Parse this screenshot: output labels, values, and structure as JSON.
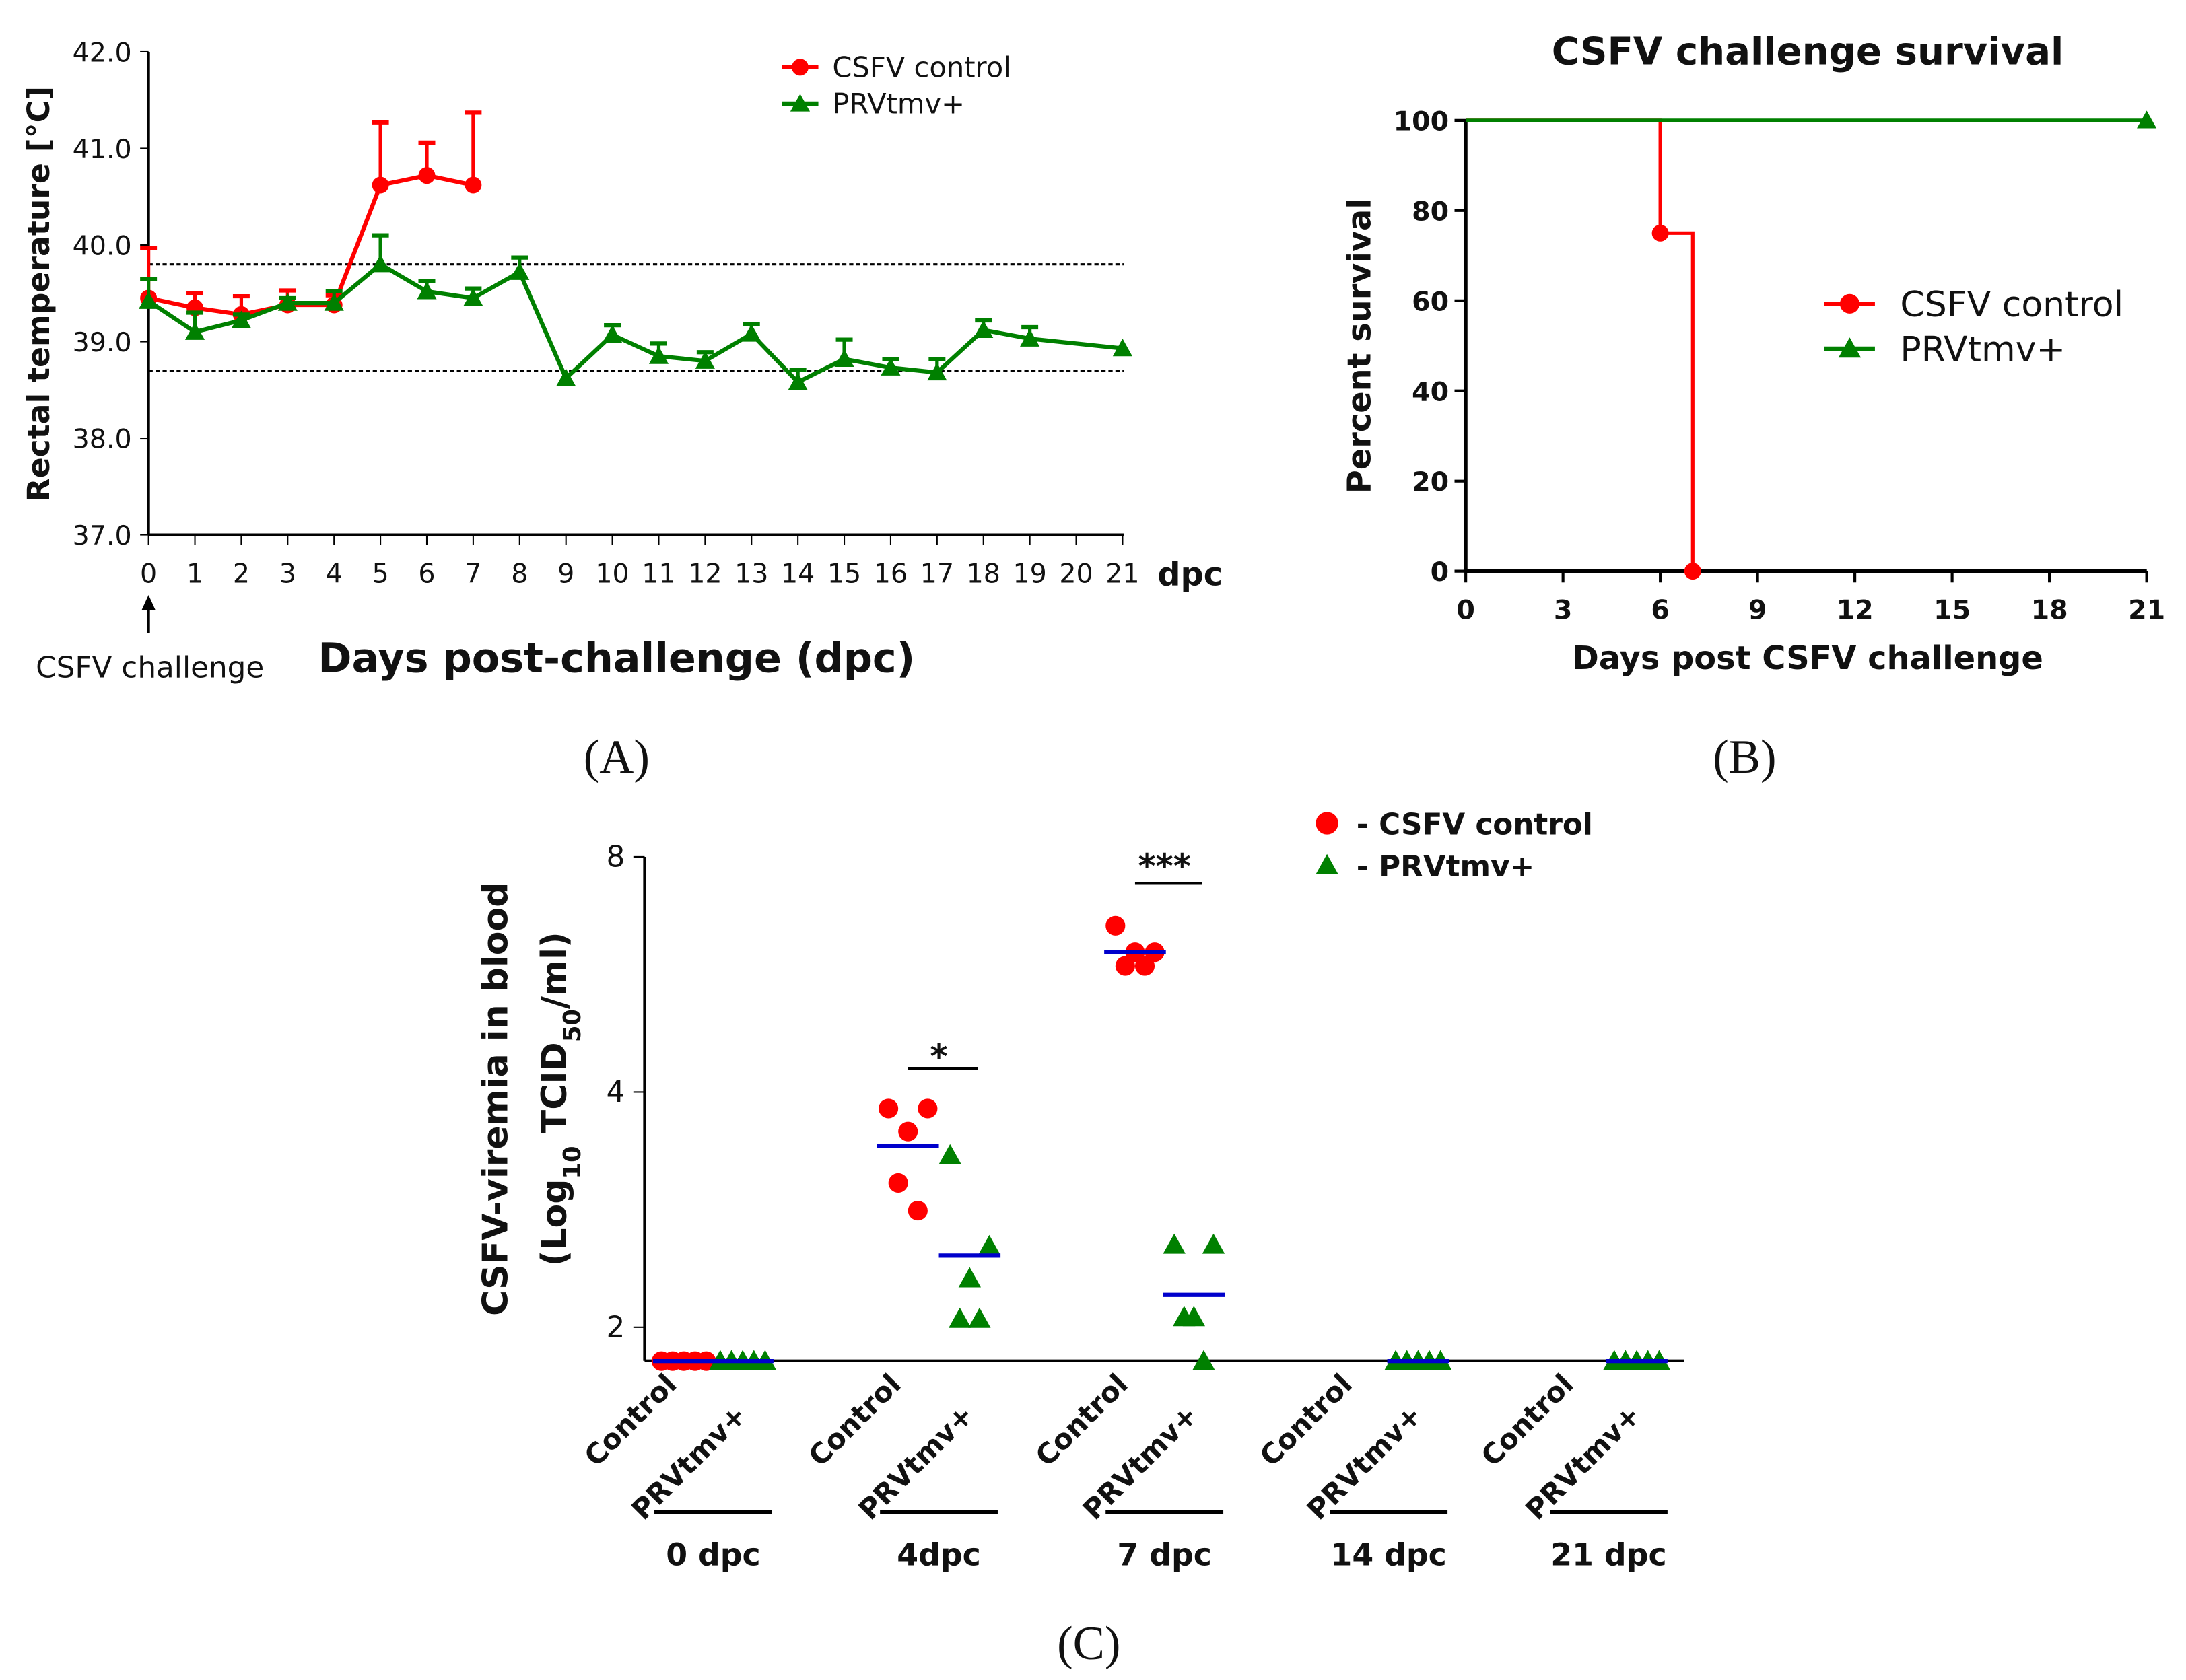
{
  "chart_data": [
    {
      "panel": "(A)",
      "type": "line",
      "title": "",
      "xlabel": "Days post-challenge (dpc)",
      "xunit": "dpc",
      "ylabel": "Rectal temperature [°C]",
      "ylim": [
        37.0,
        42.0
      ],
      "yticks": [
        "37.0",
        "38.0",
        "39.0",
        "40.0",
        "41.0",
        "42.0"
      ],
      "xticks": [
        "0",
        "1",
        "2",
        "3",
        "4",
        "5",
        "6",
        "7",
        "8",
        "9",
        "10",
        "11",
        "12",
        "13",
        "14",
        "15",
        "16",
        "17",
        "18",
        "19",
        "20",
        "21"
      ],
      "reference_lines": [
        39.8,
        38.7
      ],
      "annotation": "CSFV challenge",
      "legend_position": "top-right",
      "series": [
        {
          "name": "CSFV control",
          "color": "#ff0000",
          "marker": "circle",
          "x": [
            0,
            1,
            2,
            3,
            4,
            5,
            6,
            7
          ],
          "y": [
            39.45,
            39.35,
            39.28,
            39.38,
            39.38,
            40.62,
            40.72,
            40.62
          ],
          "err_upper": [
            39.97,
            39.5,
            39.47,
            39.53,
            39.48,
            41.27,
            41.06,
            41.37
          ]
        },
        {
          "name": "PRVtmv+",
          "color": "#008000",
          "marker": "triangle",
          "x": [
            0,
            1,
            2,
            3,
            4,
            5,
            6,
            7,
            8,
            9,
            10,
            11,
            12,
            13,
            14,
            15,
            16,
            17,
            18,
            19,
            21
          ],
          "y": [
            39.42,
            39.1,
            39.22,
            39.4,
            39.4,
            39.8,
            39.52,
            39.45,
            39.72,
            38.62,
            39.07,
            38.85,
            38.8,
            39.08,
            38.58,
            38.82,
            38.73,
            38.68,
            39.12,
            39.03,
            38.93
          ],
          "err_upper": [
            39.65,
            39.3,
            39.28,
            39.45,
            39.52,
            40.1,
            39.63,
            39.55,
            39.87,
            38.62,
            39.17,
            38.98,
            38.89,
            39.18,
            38.71,
            39.02,
            38.82,
            38.82,
            39.22,
            39.15,
            38.93
          ]
        }
      ]
    },
    {
      "panel": "(B)",
      "type": "line",
      "title": "CSFV challenge survival",
      "xlabel": "Days post CSFV challenge",
      "ylabel": "Percent survival",
      "xlim": [
        0,
        21
      ],
      "ylim": [
        0,
        100
      ],
      "xticks": [
        "0",
        "3",
        "6",
        "9",
        "12",
        "15",
        "18",
        "21"
      ],
      "yticks": [
        "0",
        "20",
        "40",
        "60",
        "80",
        "100"
      ],
      "legend_position": "right",
      "series": [
        {
          "name": "CSFV control",
          "color": "#ff0000",
          "marker": "circle",
          "step": true,
          "x": [
            0,
            6,
            7
          ],
          "y": [
            100,
            75,
            0
          ],
          "marked": [
            [
              6,
              75
            ],
            [
              7,
              0
            ]
          ]
        },
        {
          "name": "PRVtmv+",
          "color": "#008000",
          "marker": "triangle",
          "step": true,
          "x": [
            0,
            21
          ],
          "y": [
            100,
            100
          ],
          "marked": [
            [
              21,
              100
            ]
          ]
        }
      ]
    },
    {
      "panel": "(C)",
      "type": "scatter",
      "ylabel_line1": "CSFV-viremia in blood",
      "ylabel_line2_pre": "(Log",
      "ylabel_sub1": "10",
      "ylabel_mid": " TCID",
      "ylabel_sub2": "50",
      "ylabel_post": "/ml)",
      "yscale": "log2",
      "yticks": [
        "2",
        "4",
        "8"
      ],
      "legend_position": "top-right",
      "legend": [
        {
          "name": "- CSFV control",
          "color": "#ff0000",
          "marker": "circle"
        },
        {
          "name": "- PRVtmv+",
          "color": "#008000",
          "marker": "triangle"
        }
      ],
      "mean_color": "#0000cc",
      "groups": [
        {
          "label": "0 dpc",
          "significance": "",
          "control": {
            "label": "Control",
            "values": [
              1.81,
              1.81,
              1.81,
              1.81,
              1.81
            ],
            "mean": 1.81
          },
          "prv": {
            "label": "PRVtmv+",
            "values": [
              1.81,
              1.81,
              1.81,
              1.81,
              1.81
            ],
            "mean": 1.81
          }
        },
        {
          "label": "4dpc",
          "significance": "*",
          "control": {
            "label": "Control",
            "values": [
              3.81,
              3.81,
              3.56,
              3.06,
              2.82
            ],
            "mean": 3.41
          },
          "prv": {
            "label": "PRVtmv+",
            "values": [
              3.32,
              2.54,
              2.31,
              2.05,
              2.05
            ],
            "mean": 2.47
          }
        },
        {
          "label": "7 dpc",
          "significance": "***",
          "control": {
            "label": "Control",
            "values": [
              6.53,
              6.04,
              6.04,
              5.8,
              5.8
            ],
            "mean": 6.04
          },
          "prv": {
            "label": "PRVtmv+",
            "values": [
              2.55,
              2.55,
              2.06,
              2.06,
              1.81
            ],
            "mean": 2.2
          }
        },
        {
          "label": "14 dpc",
          "significance": "",
          "control": {
            "label": "Control",
            "values": [],
            "mean": null
          },
          "prv": {
            "label": "PRVtmv+",
            "values": [
              1.81,
              1.81,
              1.81,
              1.81,
              1.81
            ],
            "mean": 1.81
          }
        },
        {
          "label": "21 dpc",
          "significance": "",
          "control": {
            "label": "Control",
            "values": [],
            "mean": null
          },
          "prv": {
            "label": "PRVtmv+",
            "values": [
              1.81,
              1.81,
              1.81,
              1.81,
              1.81
            ],
            "mean": 1.81
          }
        }
      ]
    }
  ]
}
